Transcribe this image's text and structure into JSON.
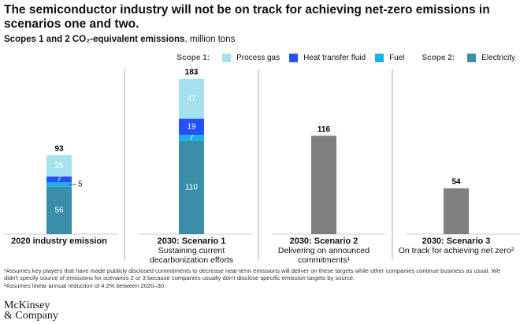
{
  "chart_data": {
    "type": "bar",
    "title": "The semiconductor industry will not be on track for achieving net-zero emissions in scenarios one and two.",
    "subtitle": "Scopes 1 and 2 CO₂-equivalent emissions",
    "subtitle_unit": ", million tons",
    "scope_labels": [
      "Scope 1:",
      "Scope 2:"
    ],
    "categories": [
      "2020 industry emission",
      "2030: Scenario 1",
      "2030: Scenario 2",
      "2030: Scenario 3"
    ],
    "category_descriptions": [
      null,
      "Sustaining current decarbonization efforts",
      "Delivering on announced commitments¹",
      "On track for achieving net zero²"
    ],
    "series": [
      {
        "name": "Process gas",
        "color": "#a6e1ef",
        "values": [
          25,
          47,
          null,
          null
        ]
      },
      {
        "name": "Heat transfer fluid",
        "color": "#2251ff",
        "values": [
          7,
          19,
          null,
          null
        ]
      },
      {
        "name": "Fuel",
        "color": "#1ab0e8",
        "values": [
          5,
          7,
          null,
          null
        ]
      },
      {
        "name": "Electricity",
        "color": "#3a8eaa",
        "values": [
          56,
          110,
          null,
          null
        ]
      }
    ],
    "totals": [
      93,
      183,
      116,
      54
    ],
    "total_color": "#7f7f7f",
    "footnotes": [
      "¹Assumes key players that have made publicly disclosed commitments to decrease near-term emissions will deliver on these targets while other companies continue business as usual. We didn't specify source of emissions for scenarios 2 or 3 because companies usually don't disclose specific emission targets by source.",
      "²Assumes linear annual reduction of 4.2% between 2020–30."
    ],
    "logo": [
      "McKinsey",
      "& Company"
    ]
  }
}
